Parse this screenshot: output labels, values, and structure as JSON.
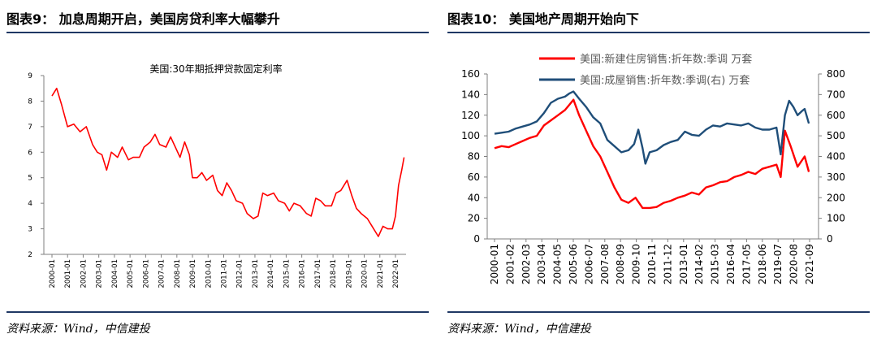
{
  "left_panel": {
    "title": "图表9：  加息周期开启，美国房贷利率大幅攀升",
    "source": "资料来源：Wind，中信建投"
  },
  "right_panel": {
    "title": "图表10：  美国地产周期开始向下",
    "source": "资料来源：Wind，中信建投"
  },
  "colors": {
    "rule": "#1f3864",
    "red": "#ff0000",
    "blue": "#1f4e79",
    "axis": "#7f7f7f"
  },
  "chart_data": [
    {
      "type": "line",
      "title": "美国:30年期抵押贷款固定利率",
      "xlabel": "",
      "ylabel": "",
      "ylim": [
        2,
        9
      ],
      "yticks": [
        "2",
        "3",
        "4",
        "5",
        "6",
        "7",
        "8",
        "9"
      ],
      "xticks": [
        "2000-01",
        "2001-01",
        "2002-01",
        "2003-01",
        "2004-01",
        "2005-01",
        "2006-01",
        "2007-01",
        "2008-01",
        "2009-01",
        "2010-01",
        "2011-01",
        "2012-01",
        "2013-01",
        "2014-01",
        "2015-01",
        "2016-01",
        "2017-01",
        "2018-01",
        "2019-01",
        "2020-01",
        "2021-01",
        "2022-01"
      ],
      "grid": false,
      "series": [
        {
          "name": "美国:30年期抵押贷款固定利率",
          "color": "#ff0000",
          "x": [
            2000.0,
            2000.3,
            2000.6,
            2001.0,
            2001.4,
            2001.8,
            2002.2,
            2002.6,
            2002.9,
            2003.2,
            2003.5,
            2003.8,
            2004.2,
            2004.5,
            2004.9,
            2005.2,
            2005.6,
            2005.9,
            2006.3,
            2006.6,
            2006.9,
            2007.3,
            2007.6,
            2007.9,
            2008.2,
            2008.5,
            2008.8,
            2009.0,
            2009.3,
            2009.6,
            2009.9,
            2010.3,
            2010.6,
            2010.9,
            2011.2,
            2011.5,
            2011.8,
            2012.2,
            2012.5,
            2012.9,
            2013.2,
            2013.5,
            2013.8,
            2014.2,
            2014.5,
            2014.9,
            2015.2,
            2015.5,
            2015.9,
            2016.3,
            2016.6,
            2016.9,
            2017.2,
            2017.5,
            2017.9,
            2018.2,
            2018.5,
            2018.9,
            2019.2,
            2019.5,
            2019.8,
            2020.2,
            2020.5,
            2020.9,
            2021.2,
            2021.5,
            2021.8,
            2022.0,
            2022.2,
            2022.4,
            2022.55
          ],
          "values": [
            8.2,
            8.5,
            7.9,
            7.0,
            7.1,
            6.8,
            7.0,
            6.3,
            6.0,
            5.9,
            5.3,
            6.0,
            5.8,
            6.2,
            5.7,
            5.8,
            5.8,
            6.2,
            6.4,
            6.7,
            6.3,
            6.2,
            6.6,
            6.2,
            5.8,
            6.4,
            5.9,
            5.0,
            5.0,
            5.2,
            4.9,
            5.1,
            4.5,
            4.3,
            4.8,
            4.5,
            4.1,
            4.0,
            3.6,
            3.4,
            3.5,
            4.4,
            4.3,
            4.4,
            4.1,
            4.0,
            3.7,
            4.0,
            3.9,
            3.6,
            3.5,
            4.2,
            4.1,
            3.9,
            3.9,
            4.4,
            4.5,
            4.9,
            4.3,
            3.8,
            3.6,
            3.4,
            3.1,
            2.7,
            3.1,
            3.0,
            3.0,
            3.5,
            4.7,
            5.3,
            5.8
          ]
        }
      ]
    },
    {
      "type": "line",
      "title": "",
      "xlabel": "",
      "ylabel": "",
      "ylim": [
        0,
        160
      ],
      "y2lim": [
        0,
        800
      ],
      "yticks": [
        "0",
        "20",
        "40",
        "60",
        "80",
        "100",
        "120",
        "140",
        "160"
      ],
      "y2ticks": [
        "0",
        "100",
        "200",
        "300",
        "400",
        "500",
        "600",
        "700",
        "800"
      ],
      "xticks": [
        "2000-01",
        "2001-02",
        "2002-03",
        "2003-04",
        "2004-05",
        "2005-06",
        "2006-07",
        "2007-08",
        "2008-09",
        "2009-10",
        "2010-11",
        "2011-12",
        "2013-01",
        "2014-02",
        "2015-03",
        "2016-04",
        "2017-05",
        "2018-06",
        "2019-07",
        "2020-08",
        "2021-09"
      ],
      "legend_position": "top",
      "grid": false,
      "series": [
        {
          "name": "美国:新建住房销售:折年数:季调 万套",
          "axis": "left",
          "color": "#ff0000",
          "x": [
            2000.0,
            2000.5,
            2001.0,
            2001.5,
            2002.0,
            2002.5,
            2003.0,
            2003.5,
            2004.0,
            2004.5,
            2005.0,
            2005.3,
            2005.6,
            2006.0,
            2006.5,
            2007.0,
            2007.5,
            2008.0,
            2008.5,
            2009.0,
            2009.5,
            2010.0,
            2010.5,
            2011.0,
            2011.5,
            2012.0,
            2012.5,
            2013.0,
            2013.5,
            2014.0,
            2014.5,
            2015.0,
            2015.5,
            2016.0,
            2016.5,
            2017.0,
            2017.5,
            2018.0,
            2018.5,
            2019.0,
            2019.5,
            2020.0,
            2020.3,
            2020.6,
            2021.0,
            2021.5,
            2022.0,
            2022.3
          ],
          "values": [
            88,
            90,
            89,
            92,
            95,
            98,
            100,
            110,
            115,
            120,
            125,
            130,
            135,
            120,
            105,
            90,
            80,
            65,
            50,
            38,
            35,
            40,
            30,
            30,
            31,
            35,
            37,
            40,
            42,
            45,
            43,
            50,
            52,
            55,
            56,
            60,
            62,
            65,
            63,
            68,
            70,
            72,
            60,
            105,
            90,
            70,
            80,
            65
          ]
        },
        {
          "name": "美国:成屋销售:折年数:季调(右) 万套",
          "axis": "right",
          "color": "#1f4e79",
          "x": [
            2000.0,
            2000.5,
            2001.0,
            2001.5,
            2002.0,
            2002.5,
            2003.0,
            2003.5,
            2004.0,
            2004.5,
            2005.0,
            2005.3,
            2005.6,
            2006.0,
            2006.5,
            2007.0,
            2007.5,
            2008.0,
            2008.5,
            2009.0,
            2009.5,
            2009.9,
            2010.2,
            2010.5,
            2010.7,
            2011.0,
            2011.5,
            2012.0,
            2012.5,
            2013.0,
            2013.5,
            2014.0,
            2014.5,
            2015.0,
            2015.5,
            2016.0,
            2016.5,
            2017.0,
            2017.5,
            2018.0,
            2018.5,
            2019.0,
            2019.5,
            2020.0,
            2020.3,
            2020.6,
            2020.9,
            2021.2,
            2021.5,
            2021.8,
            2022.0,
            2022.3
          ],
          "values": [
            510,
            515,
            520,
            535,
            545,
            555,
            570,
            610,
            660,
            680,
            690,
            705,
            715,
            680,
            640,
            590,
            560,
            480,
            450,
            420,
            430,
            460,
            530,
            440,
            365,
            420,
            430,
            455,
            470,
            480,
            520,
            505,
            500,
            530,
            550,
            545,
            560,
            555,
            550,
            560,
            540,
            530,
            530,
            540,
            410,
            600,
            670,
            640,
            600,
            620,
            630,
            560
          ]
        }
      ]
    }
  ]
}
